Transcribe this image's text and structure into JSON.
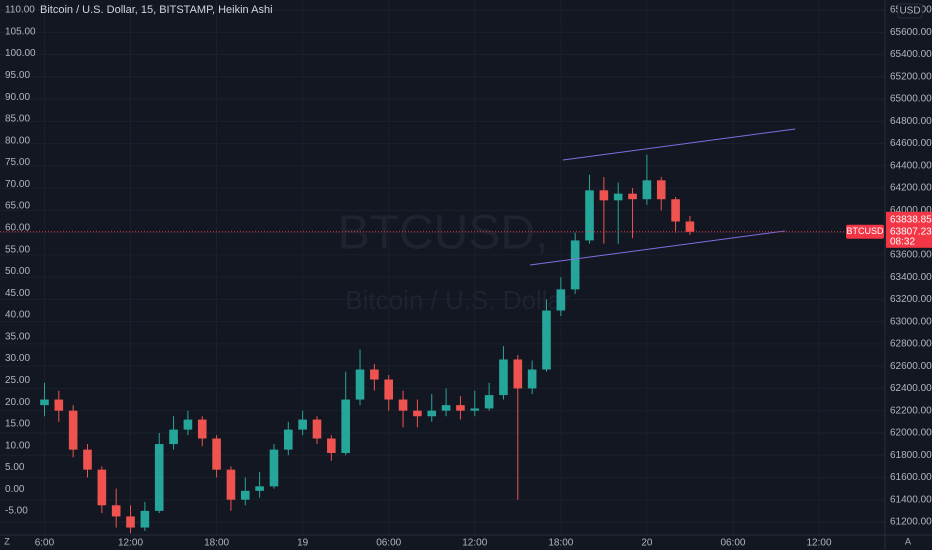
{
  "chart_data": {
    "type": "candlestick",
    "title": "Bitcoin / U.S. Dollar, 15, BITSTAMP, Heikin Ashi",
    "watermark_symbol": "BTCUSD,",
    "watermark_name": "Bitcoin / U.S. Dollar",
    "currency": "USD",
    "up_color": "#26a69a",
    "down_color": "#ef5350",
    "grid": true,
    "x": [
      0,
      1,
      2,
      3,
      4,
      5,
      6,
      7,
      8,
      9,
      10,
      11,
      12,
      13,
      14,
      15,
      16,
      17,
      18,
      19,
      20,
      21,
      22,
      23,
      24,
      25,
      26,
      27,
      28,
      29,
      30,
      31,
      32,
      33,
      34,
      35,
      36,
      37,
      38,
      39,
      40,
      41,
      42,
      43,
      44,
      45
    ],
    "open": [
      62250,
      62300,
      62200,
      61850,
      61670,
      61350,
      61250,
      61150,
      61300,
      61900,
      62030,
      62120,
      61950,
      61670,
      61400,
      61480,
      61520,
      61850,
      62030,
      62120,
      61950,
      61820,
      62300,
      62570,
      62480,
      62300,
      62200,
      62150,
      62200,
      62250,
      62200,
      62220,
      62340,
      62660,
      62400,
      62570,
      63100,
      63290,
      63730,
      64180,
      64090,
      64150,
      64100,
      64270,
      64100,
      63900
    ],
    "high": [
      62450,
      62380,
      62250,
      61900,
      61700,
      61500,
      61350,
      61380,
      62000,
      62150,
      62200,
      62150,
      61980,
      61700,
      61600,
      61650,
      61900,
      62100,
      62200,
      62150,
      61980,
      62550,
      62750,
      62620,
      62520,
      62380,
      62300,
      62350,
      62400,
      62330,
      62380,
      62450,
      62780,
      62700,
      62650,
      63200,
      63400,
      63800,
      64320,
      64300,
      64250,
      64200,
      64500,
      64300,
      64120,
      63950
    ],
    "low": [
      62150,
      62100,
      61780,
      61600,
      61280,
      61150,
      61100,
      61120,
      61280,
      61850,
      61980,
      61880,
      61600,
      61300,
      61350,
      61420,
      61500,
      61800,
      61980,
      61900,
      61750,
      61800,
      62250,
      62380,
      62200,
      62050,
      62050,
      62100,
      62150,
      62120,
      62150,
      62200,
      62300,
      61400,
      62350,
      62550,
      63050,
      63250,
      63700,
      63700,
      63700,
      63750,
      64050,
      64000,
      63800,
      63780
    ],
    "close": [
      62300,
      62200,
      61850,
      61670,
      61350,
      61250,
      61150,
      61300,
      61900,
      62030,
      62120,
      61950,
      61670,
      61400,
      61480,
      61520,
      61850,
      62030,
      62120,
      61950,
      61820,
      62300,
      62570,
      62480,
      62300,
      62200,
      62150,
      62200,
      62250,
      62200,
      62220,
      62340,
      62660,
      62400,
      62570,
      63100,
      63290,
      63730,
      64180,
      64090,
      64150,
      64100,
      64270,
      64100,
      63900,
      63807
    ],
    "xlim": [
      -3.1,
      58.6
    ],
    "xticks": [
      {
        "value": 0,
        "label": "6:00"
      },
      {
        "value": 6,
        "label": "12:00"
      },
      {
        "value": 12,
        "label": "18:00"
      },
      {
        "value": 18,
        "label": "19"
      },
      {
        "value": 24,
        "label": "06:00"
      },
      {
        "value": 30,
        "label": "12:00"
      },
      {
        "value": 36,
        "label": "18:00"
      },
      {
        "value": 42,
        "label": "20"
      },
      {
        "value": 48,
        "label": "06:00"
      },
      {
        "value": 54,
        "label": "12:00"
      }
    ],
    "ylim": [
      61083,
      65890
    ],
    "yticks": [
      {
        "value": 61200,
        "label": "61200.00"
      },
      {
        "value": 61400,
        "label": "61400.00"
      },
      {
        "value": 61600,
        "label": "61600.00"
      },
      {
        "value": 61800,
        "label": "61800.00"
      },
      {
        "value": 62000,
        "label": "62000.00"
      },
      {
        "value": 62200,
        "label": "62200.00"
      },
      {
        "value": 62400,
        "label": "62400.00"
      },
      {
        "value": 62600,
        "label": "62600.00"
      },
      {
        "value": 62800,
        "label": "62800.00"
      },
      {
        "value": 63000,
        "label": "63000.00"
      },
      {
        "value": 63200,
        "label": "63200.00"
      },
      {
        "value": 63400,
        "label": "63400.00"
      },
      {
        "value": 63600,
        "label": "63600.00"
      },
      {
        "value": 63800,
        "label": "63800.00"
      },
      {
        "value": 64000,
        "label": "64000.00"
      },
      {
        "value": 64200,
        "label": "64200.00"
      },
      {
        "value": 64400,
        "label": "64400.00"
      },
      {
        "value": 64600,
        "label": "64600.00"
      },
      {
        "value": 64800,
        "label": "64800.00"
      },
      {
        "value": 65000,
        "label": "65000.00"
      },
      {
        "value": 65200,
        "label": "65200.00"
      },
      {
        "value": 65400,
        "label": "65400.00"
      },
      {
        "value": 65600,
        "label": "65600.00"
      },
      {
        "value": 65800,
        "label": "65800.00"
      }
    ],
    "y2lim": [
      -10.5,
      112.3
    ],
    "y2ticks": [
      {
        "value": -5,
        "label": "-5.00"
      },
      {
        "value": 0,
        "label": "0.00"
      },
      {
        "value": 5,
        "label": "5.00"
      },
      {
        "value": 10,
        "label": "10.00"
      },
      {
        "value": 15,
        "label": "15.00"
      },
      {
        "value": 20,
        "label": "20.00"
      },
      {
        "value": 25,
        "label": "25.00"
      },
      {
        "value": 30,
        "label": "30.00"
      },
      {
        "value": 35,
        "label": "35.00"
      },
      {
        "value": 40,
        "label": "40.00"
      },
      {
        "value": 45,
        "label": "45.00"
      },
      {
        "value": 50,
        "label": "50.00"
      },
      {
        "value": 55,
        "label": "55.00"
      },
      {
        "value": 60,
        "label": "60.00"
      },
      {
        "value": 65,
        "label": "65.00"
      },
      {
        "value": 70,
        "label": "70.00"
      },
      {
        "value": 75,
        "label": "75.00"
      },
      {
        "value": 80,
        "label": "80.00"
      },
      {
        "value": 85,
        "label": "85.00"
      },
      {
        "value": 90,
        "label": "90.00"
      },
      {
        "value": 95,
        "label": "95.00"
      },
      {
        "value": 100,
        "label": "100.00"
      },
      {
        "value": 105,
        "label": "105.00"
      },
      {
        "value": 110,
        "label": "110.00"
      }
    ],
    "trend_lines": [
      {
        "color": "#7e6fe0",
        "x": [
          36.15,
          52.34
        ],
        "y": [
          64452,
          64731
        ]
      },
      {
        "color": "#7e6fe0",
        "x": [
          33.85,
          51.64
        ],
        "y": [
          63509,
          63815
        ]
      }
    ],
    "last_price": {
      "symbol": "BTCUSD",
      "value": 63807.23,
      "high": 63838.85,
      "countdown": "08:32",
      "color": "#f23645"
    },
    "corner_left": "Z",
    "corner_right": "A"
  }
}
